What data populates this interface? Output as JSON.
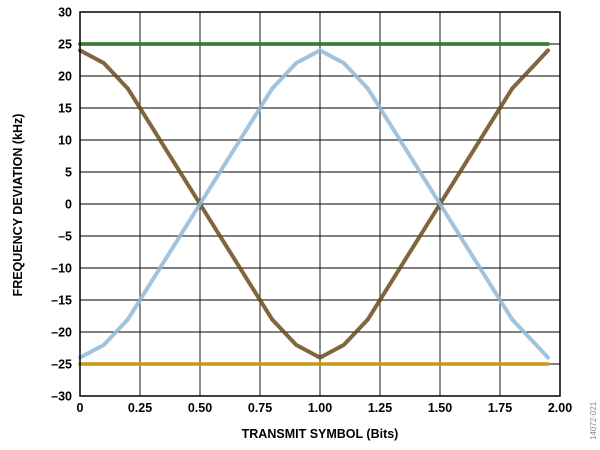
{
  "chart_data": {
    "type": "line",
    "title": "",
    "xlabel": "TRANSMIT SYMBOL (Bits)",
    "ylabel": "FREQUENCY DEVIATION (kHz)",
    "xlim": [
      0,
      2.0
    ],
    "ylim": [
      -30,
      30
    ],
    "x_ticks": [
      0,
      0.25,
      0.5,
      0.75,
      1.0,
      1.25,
      1.5,
      1.75,
      2.0
    ],
    "x_tick_labels": [
      "0",
      "0.25",
      "0.50",
      "0.75",
      "1.00",
      "1.25",
      "1.50",
      "1.75",
      "2.00"
    ],
    "y_ticks": [
      -30,
      -25,
      -20,
      -15,
      -10,
      -5,
      0,
      5,
      10,
      15,
      20,
      25,
      30
    ],
    "y_tick_labels": [
      "–30",
      "–25",
      "–20",
      "–15",
      "–10",
      "–5",
      "0",
      "5",
      "10",
      "15",
      "20",
      "25",
      "30"
    ],
    "grid": true,
    "legend": "none",
    "figure_id": "14072-021",
    "x": [
      0,
      0.1,
      0.2,
      0.3,
      0.4,
      0.5,
      0.6,
      0.7,
      0.8,
      0.9,
      1.0,
      1.1,
      1.2,
      1.3,
      1.4,
      1.5,
      1.6,
      1.7,
      1.8,
      1.9,
      1.95
    ],
    "series": [
      {
        "color": "#2e7d32",
        "values": [
          25,
          25,
          25,
          25,
          25,
          25,
          25,
          25,
          25,
          25,
          25,
          25,
          25,
          25,
          25,
          25,
          25,
          25,
          25,
          25,
          25
        ]
      },
      {
        "color": "#d4a017",
        "values": [
          -25,
          -25,
          -25,
          -25,
          -25,
          -25,
          -25,
          -25,
          -25,
          -25,
          -25,
          -25,
          -25,
          -25,
          -25,
          -25,
          -25,
          -25,
          -25,
          -25,
          -25
        ]
      },
      {
        "color": "#6b4a1a",
        "values": [
          24,
          22,
          18,
          12,
          6,
          0,
          -6,
          -12,
          -18,
          -22,
          -24,
          -22,
          -18,
          -12,
          -6,
          0,
          6,
          12,
          18,
          22,
          24
        ]
      },
      {
        "color": "#8fb8d8",
        "values": [
          -24,
          -22,
          -18,
          -12,
          -6,
          0,
          6,
          12,
          18,
          22,
          24,
          22,
          18,
          12,
          6,
          0,
          -6,
          -12,
          -18,
          -22,
          -24
        ]
      }
    ]
  }
}
